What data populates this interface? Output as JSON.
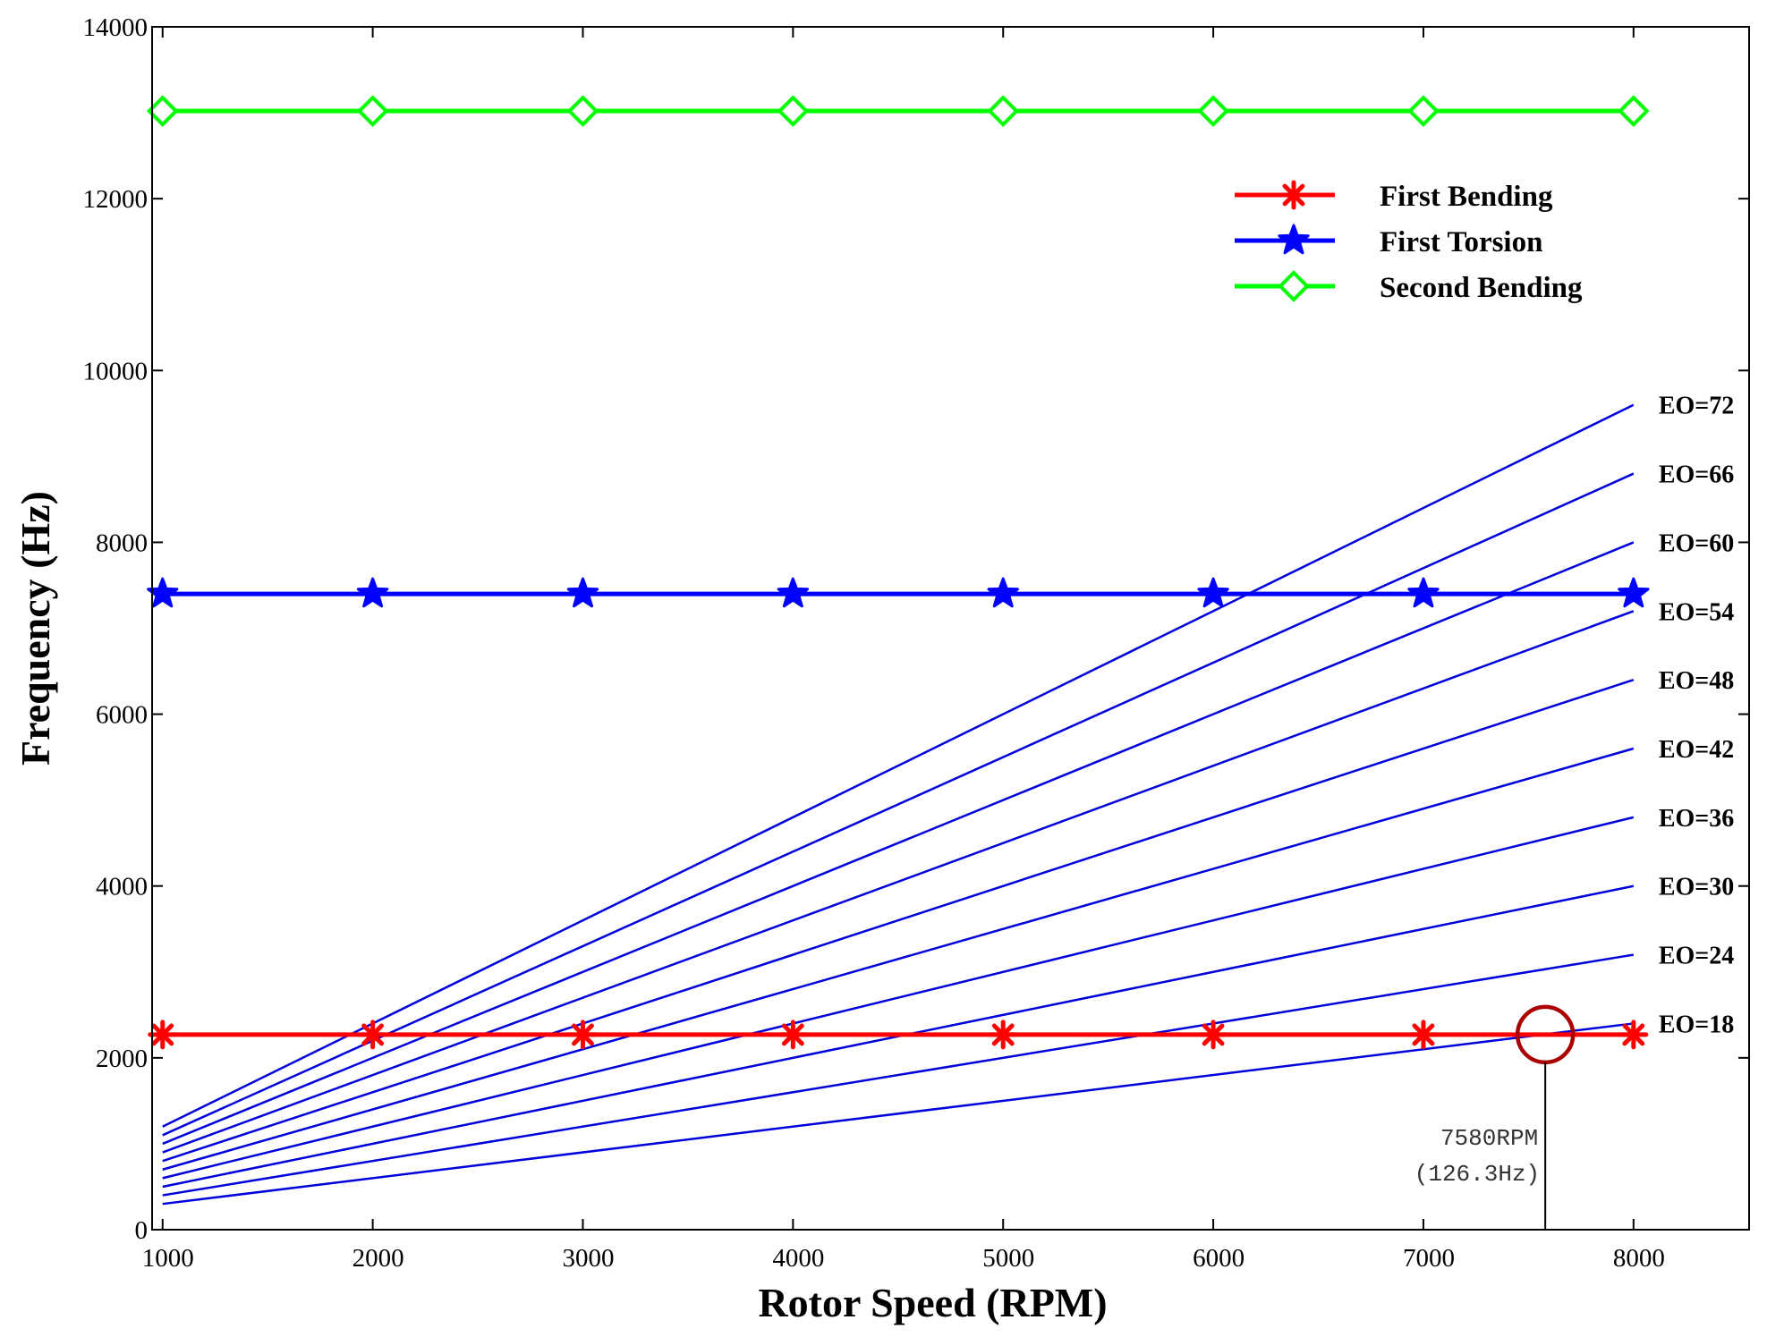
{
  "chart_data": {
    "type": "line",
    "title": "",
    "xlabel": "Rotor Speed (RPM)",
    "ylabel": "Frequency (Hz)",
    "xlim": [
      950,
      8550
    ],
    "ylim": [
      0,
      14000
    ],
    "xticks": [
      1000,
      2000,
      3000,
      4000,
      5000,
      6000,
      7000,
      8000
    ],
    "yticks": [
      0,
      2000,
      4000,
      6000,
      8000,
      10000,
      12000,
      14000
    ],
    "x": [
      1000,
      2000,
      3000,
      4000,
      5000,
      6000,
      7000,
      8000
    ],
    "series": [
      {
        "name": "First Bending",
        "color": "#ff0000",
        "marker": "asterisk",
        "values": [
          2270,
          2270,
          2270,
          2270,
          2270,
          2270,
          2270,
          2270
        ]
      },
      {
        "name": "First Torsion",
        "color": "#0000ff",
        "marker": "star",
        "values": [
          7400,
          7400,
          7400,
          7400,
          7400,
          7400,
          7400,
          7400
        ]
      },
      {
        "name": "Second Bending",
        "color": "#00ff00",
        "marker": "diamond",
        "values": [
          13020,
          13020,
          13020,
          13020,
          13020,
          13020,
          13020,
          13020
        ]
      }
    ],
    "engine_orders": {
      "color": "#0000dd",
      "x_start": 1000,
      "x_end": 8000,
      "orders": [
        18,
        24,
        30,
        36,
        42,
        48,
        54,
        60,
        66,
        72
      ],
      "labels": [
        "EO=18",
        "EO=24",
        "EO=30",
        "EO=36",
        "EO=42",
        "EO=48",
        "EO=54",
        "EO=60",
        "EO=66",
        "EO=72"
      ]
    },
    "annotation": {
      "x": 7580,
      "y": 2270,
      "line1": "7580RPM",
      "line2": "(126.3Hz)",
      "circle_color": "#aa0000",
      "line_color": "#000000"
    },
    "legend": {
      "placement": "top-right",
      "entries": [
        "First Bending",
        "First Torsion",
        "Second Bending"
      ]
    },
    "grid": false
  }
}
